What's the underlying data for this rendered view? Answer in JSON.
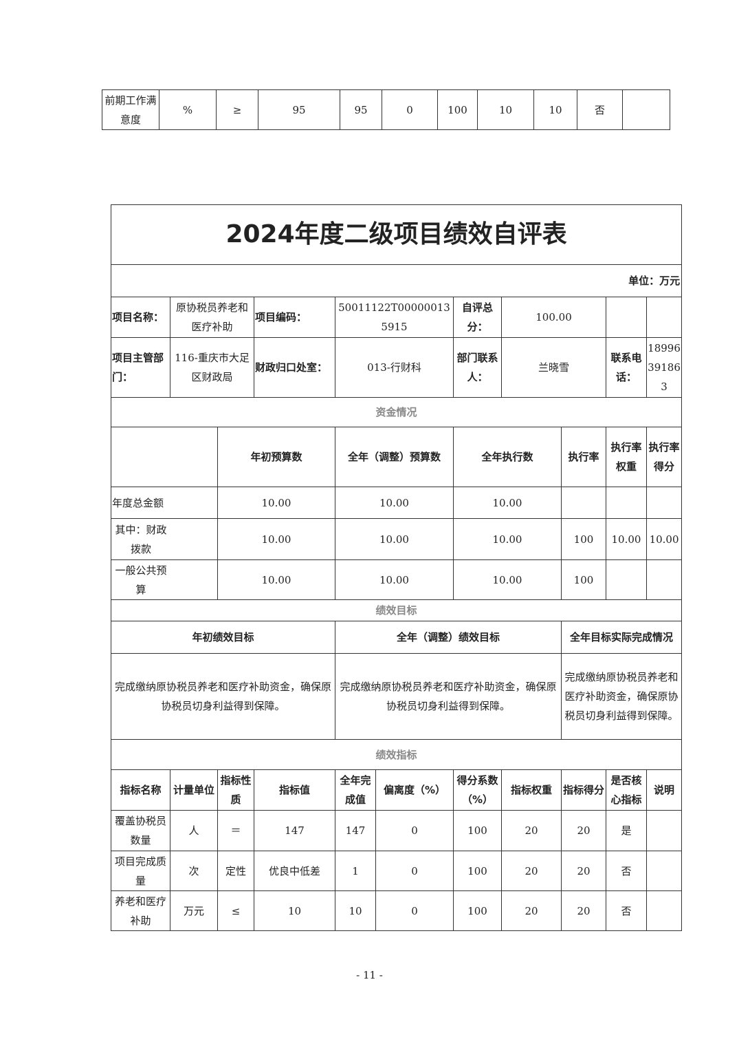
{
  "prev_table": {
    "row": [
      "前期工作满意度",
      "%",
      "≥",
      "95",
      "95",
      "0",
      "100",
      "10",
      "10",
      "否",
      ""
    ]
  },
  "title": "2024年度二级项目绩效自评表",
  "unit": "单位：万元",
  "info": {
    "name_label": "项目名称：",
    "name": "原协税员养老和医疗补助",
    "code_label": "项目编码：",
    "code": "50011122T000000135915",
    "score_label": "自评总分：",
    "score": "100.00",
    "dept_label": "项目主管部门：",
    "dept": "116-重庆市大足区财政局",
    "office_label": "财政归口处室：",
    "office": "013-行财科",
    "contact_label": "部门联系人：",
    "contact": "兰晓雪",
    "phone_label": "联系电话：",
    "phone": "18996391863"
  },
  "funds": {
    "section": "资金情况",
    "headers": [
      "",
      "年初预算数",
      "全年（调整）预算数",
      "全年执行数",
      "执行率",
      "执行率权重",
      "执行率得分"
    ],
    "rows": [
      [
        "年度总金额",
        "10.00",
        "10.00",
        "10.00",
        "",
        "",
        ""
      ],
      [
        "其中：财政拨款",
        "10.00",
        "10.00",
        "10.00",
        "100",
        "10.00",
        "10.00"
      ],
      [
        "一般公共预算",
        "10.00",
        "10.00",
        "10.00",
        "100",
        "",
        ""
      ]
    ]
  },
  "goals": {
    "section": "绩效目标",
    "headers": [
      "年初绩效目标",
      "全年（调整）绩效目标",
      "全年目标实际完成情况"
    ],
    "values": [
      "完成缴纳原协税员养老和医疗补助资金，确保原协税员切身利益得到保障。",
      "完成缴纳原协税员养老和医疗补助资金，确保原协税员切身利益得到保障。",
      "完成缴纳原协税员养老和医疗补助资金，确保原协税员切身利益得到保障。"
    ]
  },
  "indicators": {
    "section": "绩效指标",
    "headers": [
      "指标名称",
      "计量单位",
      "指标性质",
      "指标值",
      "全年完成值",
      "偏离度（%）",
      "得分系数（%）",
      "指标权重",
      "指标得分",
      "是否核心指标",
      "说明"
    ],
    "rows": [
      [
        "覆盖协税员数量",
        "人",
        "＝",
        "147",
        "147",
        "0",
        "100",
        "20",
        "20",
        "是",
        ""
      ],
      [
        "项目完成质量",
        "次",
        "定性",
        "优良中低差",
        "1",
        "0",
        "100",
        "20",
        "20",
        "否",
        ""
      ],
      [
        "养老和医疗补助",
        "万元",
        "≤",
        "10",
        "10",
        "0",
        "100",
        "20",
        "20",
        "否",
        ""
      ]
    ]
  },
  "page_number": "- 11 -"
}
